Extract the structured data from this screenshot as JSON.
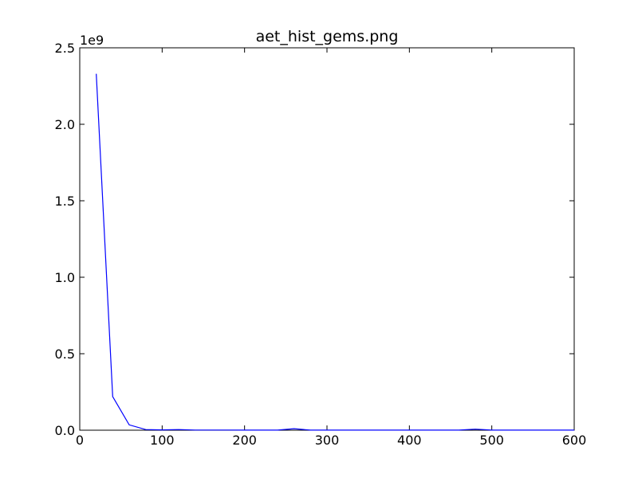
{
  "chart_data": {
    "type": "line",
    "title": "aet_hist_gems.png",
    "xlabel": "",
    "ylabel": "",
    "xlim": [
      0,
      600
    ],
    "ylim": [
      0,
      2.5
    ],
    "y_offset_label": "1e9",
    "x_ticks": [
      "0",
      "100",
      "200",
      "300",
      "400",
      "500",
      "600"
    ],
    "y_ticks": [
      "0.0",
      "0.5",
      "1.0",
      "1.5",
      "2.0",
      "2.5"
    ],
    "grid": false,
    "legend": "none",
    "series": [
      {
        "color": "#0000ff",
        "x": [
          20,
          40,
          60,
          80,
          100,
          120,
          140,
          160,
          180,
          200,
          220,
          240,
          260,
          280,
          300,
          320,
          340,
          360,
          380,
          400,
          420,
          440,
          460,
          480,
          500,
          520,
          540,
          560,
          580,
          600
        ],
        "y": [
          2.33,
          0.22,
          0.035,
          0.004,
          0.002,
          0.004,
          0.001,
          0.001,
          0.001,
          0.0005,
          0.0005,
          0.0005,
          0.01,
          0.0005,
          0.0005,
          0.0005,
          0.0005,
          0.0005,
          0.0005,
          0.0005,
          0.0005,
          0.0005,
          0.0005,
          0.007,
          0.0005,
          0.0005,
          0.0005,
          0.0005,
          0.0005,
          0.0005
        ]
      }
    ]
  }
}
